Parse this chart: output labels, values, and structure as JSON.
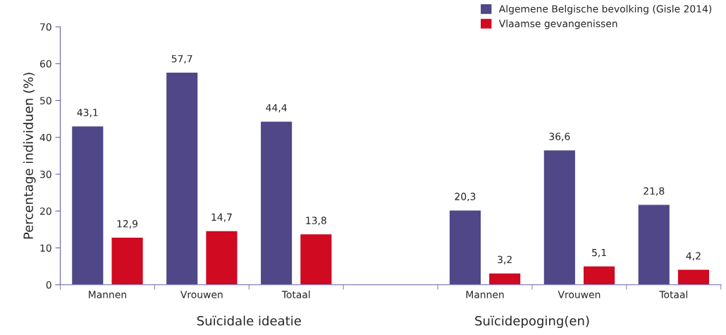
{
  "chart_data": {
    "type": "bar",
    "ylabel": "Percentage individuen (%)",
    "categories": [
      "Mannen",
      "Vrouwen",
      "Totaal",
      null,
      "Mannen",
      "Vrouwen",
      "Totaal"
    ],
    "series": [
      {
        "name": "Algemene Belgische bevolking (Gisle 2014)",
        "color": "#4f4788",
        "values": [
          43.1,
          57.7,
          44.4,
          null,
          20.3,
          36.6,
          21.8
        ],
        "value_labels": [
          "43,1",
          "57,7",
          "44,4",
          null,
          "20,3",
          "36,6",
          "21,8"
        ]
      },
      {
        "name": "Vlaamse gevangenissen",
        "color": "#cf0a21",
        "values": [
          12.9,
          14.7,
          13.8,
          null,
          3.2,
          5.1,
          4.2
        ],
        "value_labels": [
          "12,9",
          "14,7",
          "13,8",
          null,
          "3,2",
          "5,1",
          "4,2"
        ]
      }
    ],
    "ylim": [
      0,
      70
    ],
    "yticks": [
      0,
      10,
      20,
      30,
      40,
      50,
      60,
      70
    ],
    "grid": false,
    "legend": "top right",
    "annotations": [
      "Suïcidale ideatie",
      "Suïcidepoging(en)"
    ]
  }
}
